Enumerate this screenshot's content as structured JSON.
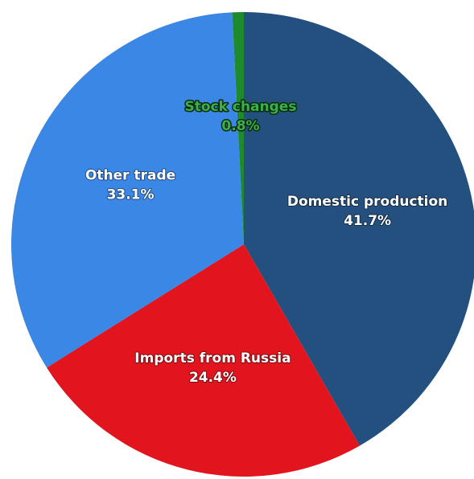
{
  "chart_data": {
    "type": "pie",
    "categories": [
      "Domestic production",
      "Imports from Russia",
      "Other trade",
      "Stock changes"
    ],
    "values": [
      41.7,
      24.4,
      33.1,
      0.8
    ],
    "value_labels": [
      "41.7%",
      "24.4%",
      "33.1%",
      "0.8%"
    ],
    "colors": [
      "#24507f",
      "#e2141d",
      "#3b87e6",
      "#1e8a2e"
    ]
  }
}
